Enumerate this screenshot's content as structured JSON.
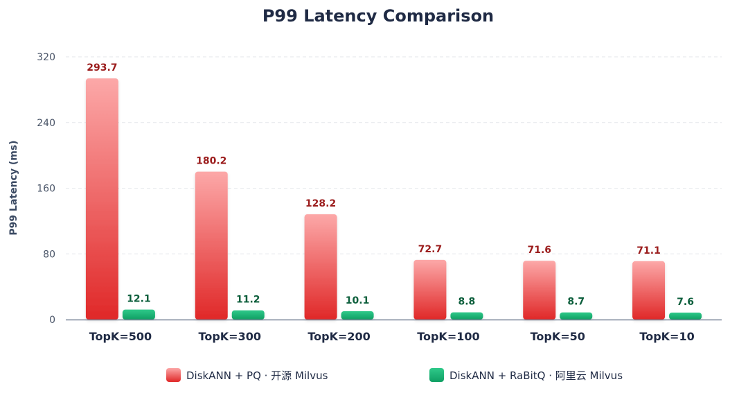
{
  "colors": {
    "series_pq_top": "#fca8a8",
    "series_pq_bottom": "#e02828",
    "series_rabitq_top": "#2fc98a",
    "series_rabitq_bottom": "#0f9f63",
    "label_pq": "#9b1c1c",
    "label_rabitq": "#0b5e3b",
    "grid": "#e3e6ea",
    "axis": "#7a8699"
  },
  "chart_data": {
    "type": "bar",
    "title": "P99 Latency Comparison",
    "xlabel": "",
    "ylabel": "P99 Latency (ms)",
    "ylim": [
      0,
      320
    ],
    "yticks": [
      0,
      80,
      160,
      240,
      320
    ],
    "grid": true,
    "legend_position": "bottom",
    "categories": [
      "TopK=500",
      "TopK=300",
      "TopK=200",
      "TopK=100",
      "TopK=50",
      "TopK=10"
    ],
    "series": [
      {
        "name": "DiskANN + PQ · 开源 Milvus",
        "values": [
          293.7,
          180.2,
          128.2,
          72.7,
          71.6,
          71.1
        ],
        "labels": [
          "293.7",
          "180.2",
          "128.2",
          "72.7",
          "71.6",
          "71.1"
        ]
      },
      {
        "name": "DiskANN + RaBitQ · 阿里云 Milvus",
        "values": [
          12.1,
          11.2,
          10.1,
          8.8,
          8.7,
          7.6
        ],
        "labels": [
          "12.1",
          "11.2",
          "10.1",
          "8.8",
          "8.7",
          "7.6"
        ]
      }
    ]
  }
}
